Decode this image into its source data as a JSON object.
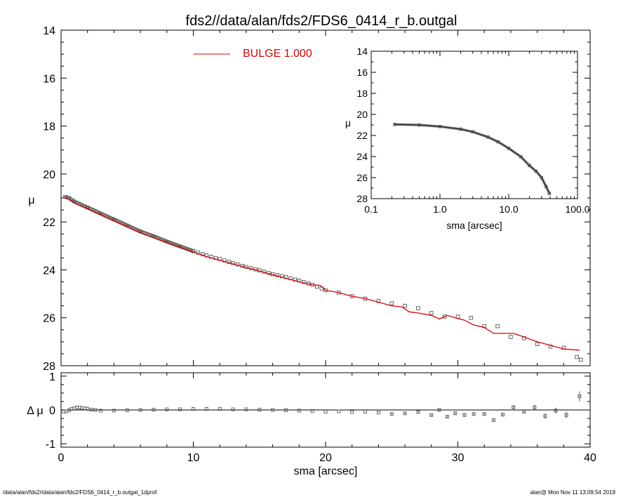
{
  "title": "fds2//data/alan/fds2/FDS6_0414_r_b.outgal",
  "footer_left": "/data/alan/fds2//data/alan/fds2/FDS6_0414_r_b.outgal_1dprof",
  "footer_right": "alan@  Mon Nov 11 13:09:54 2019",
  "colors": {
    "model": "#e00000",
    "data": "#555555",
    "axes": "#000000"
  },
  "chart_data": [
    {
      "type": "scatter",
      "panel": "main",
      "ylabel": "μ",
      "xlim": [
        0,
        40
      ],
      "ylim": [
        28,
        14
      ],
      "yticks": [
        "14",
        "16",
        "18",
        "20",
        "22",
        "24",
        "26",
        "28"
      ],
      "legend": {
        "entry": "BULGE  1.000",
        "placement": "top-center"
      },
      "grid": false,
      "series": [
        {
          "name": "BULGE  1.000",
          "style": "line",
          "x": [
            0.2,
            0.6,
            1.0,
            2.0,
            3.0,
            4.0,
            5.0,
            6.0,
            7.0,
            8.0,
            9.0,
            10.0,
            11.0,
            12.0,
            13.0,
            14.0,
            15.0,
            16.0,
            17.0,
            18.0,
            19.0,
            19.6,
            20.0,
            21.0,
            22.0,
            23.0,
            24.0,
            25.0,
            25.8,
            26.3,
            27.0,
            28.0,
            28.6,
            29.2,
            29.8,
            30.5,
            31.2,
            32.0,
            32.7,
            33.4,
            34.2,
            35.0,
            36.0,
            37.0,
            38.0,
            39.2
          ],
          "y": [
            20.95,
            21.05,
            21.2,
            21.45,
            21.7,
            21.95,
            22.2,
            22.45,
            22.65,
            22.85,
            23.05,
            23.25,
            23.45,
            23.6,
            23.75,
            23.9,
            24.05,
            24.2,
            24.35,
            24.5,
            24.62,
            24.65,
            24.85,
            24.95,
            25.1,
            25.2,
            25.35,
            25.5,
            25.55,
            25.75,
            25.8,
            25.9,
            26.05,
            25.9,
            26.0,
            26.1,
            26.3,
            26.4,
            26.65,
            26.65,
            26.65,
            26.8,
            27.0,
            27.15,
            27.3,
            27.35
          ]
        },
        {
          "name": "",
          "style": "markers",
          "x": [
            0.3,
            0.6,
            1.0,
            2.0,
            3.0,
            4.0,
            5.0,
            6.0,
            7.0,
            8.0,
            9.0,
            10.0,
            11.0,
            12.0,
            13.0,
            14.0,
            15.0,
            16.0,
            17.0,
            18.0,
            19.0,
            20.0,
            21.0,
            22.0,
            23.0,
            24.0,
            25.0,
            26.0,
            27.0,
            28.0,
            29.0,
            30.0,
            31.0,
            32.0,
            33.0,
            34.0,
            35.0,
            36.0,
            37.0,
            38.0,
            39.3
          ],
          "y": [
            20.95,
            21.0,
            21.15,
            21.4,
            21.65,
            21.9,
            22.15,
            22.4,
            22.6,
            22.82,
            23.02,
            23.22,
            23.4,
            23.55,
            23.72,
            23.88,
            24.02,
            24.18,
            24.3,
            24.45,
            24.62,
            24.85,
            24.95,
            25.1,
            25.2,
            25.3,
            25.4,
            25.5,
            25.6,
            25.8,
            25.95,
            25.95,
            26.0,
            26.35,
            26.35,
            26.8,
            26.85,
            27.1,
            27.2,
            27.25,
            27.75
          ]
        }
      ]
    },
    {
      "type": "scatter",
      "panel": "inset",
      "xlabel": "sma [arcsec]",
      "ylabel": "μ",
      "xscale": "log",
      "xlim": [
        0.1,
        100
      ],
      "ylim": [
        28,
        14
      ],
      "xticks": [
        "0.1",
        "1.0",
        "10.0",
        "100.0"
      ],
      "yticks": [
        "14",
        "16",
        "18",
        "20",
        "22",
        "24",
        "26",
        "28"
      ],
      "series": [
        {
          "name": "",
          "style": "line",
          "x": [
            0.22,
            0.5,
            1.0,
            2.0,
            3.0,
            5.0,
            7.0,
            10.0,
            15.0,
            20.0,
            25.0,
            30.0,
            35.0,
            39.0
          ],
          "y": [
            20.95,
            21.0,
            21.15,
            21.4,
            21.65,
            22.15,
            22.6,
            23.22,
            24.02,
            24.85,
            25.4,
            26.0,
            26.85,
            27.5
          ]
        }
      ]
    },
    {
      "type": "scatter",
      "panel": "residual",
      "xlabel": "sma [arcsec]",
      "ylabel": "Δ μ",
      "xlim": [
        0,
        40
      ],
      "ylim": [
        -1.1,
        1.1
      ],
      "xticks": [
        "0",
        "10",
        "20",
        "30",
        "40"
      ],
      "yticks": [
        "1",
        "0",
        "-1"
      ],
      "series": [
        {
          "name": "",
          "style": "markers",
          "x": [
            0.2,
            0.4,
            0.6,
            0.8,
            1.0,
            1.2,
            1.4,
            1.6,
            1.8,
            2.0,
            2.3,
            2.6,
            3.0,
            4.0,
            5.0,
            6.0,
            7.0,
            8.0,
            9.0,
            10.0,
            11.0,
            12.0,
            13.0,
            14.0,
            15.0,
            16.0,
            17.0,
            18.0,
            19.0,
            20.0,
            21.0,
            22.0,
            23.0,
            24.0,
            25.0,
            26.0,
            27.0,
            28.0,
            28.6,
            29.2,
            29.8,
            30.5,
            31.2,
            32.0,
            32.7,
            33.4,
            34.2,
            35.0,
            35.8,
            36.6,
            37.4,
            38.2,
            39.2
          ],
          "y": [
            -0.05,
            -0.04,
            -0.01,
            0.03,
            0.05,
            0.07,
            0.07,
            0.06,
            0.05,
            0.03,
            0.01,
            0.0,
            -0.02,
            -0.02,
            -0.01,
            0.0,
            0.01,
            0.02,
            0.02,
            0.03,
            0.03,
            0.03,
            0.02,
            0.02,
            0.01,
            0.0,
            -0.01,
            -0.02,
            -0.03,
            -0.05,
            -0.04,
            -0.06,
            -0.05,
            -0.08,
            -0.12,
            -0.1,
            -0.06,
            -0.15,
            0.0,
            -0.2,
            -0.1,
            -0.15,
            -0.12,
            -0.12,
            -0.3,
            -0.14,
            0.08,
            -0.05,
            0.08,
            -0.18,
            -0.02,
            -0.15,
            0.4
          ],
          "yerr": [
            0.01,
            0.01,
            0.01,
            0.01,
            0.01,
            0.01,
            0.01,
            0.01,
            0.01,
            0.01,
            0.01,
            0.01,
            0.01,
            0.01,
            0.01,
            0.01,
            0.01,
            0.01,
            0.01,
            0.01,
            0.01,
            0.01,
            0.01,
            0.01,
            0.01,
            0.01,
            0.01,
            0.02,
            0.02,
            0.02,
            0.02,
            0.02,
            0.02,
            0.02,
            0.03,
            0.03,
            0.03,
            0.03,
            0.03,
            0.04,
            0.04,
            0.04,
            0.04,
            0.05,
            0.05,
            0.05,
            0.06,
            0.06,
            0.07,
            0.08,
            0.09,
            0.1,
            0.15
          ]
        }
      ]
    }
  ]
}
